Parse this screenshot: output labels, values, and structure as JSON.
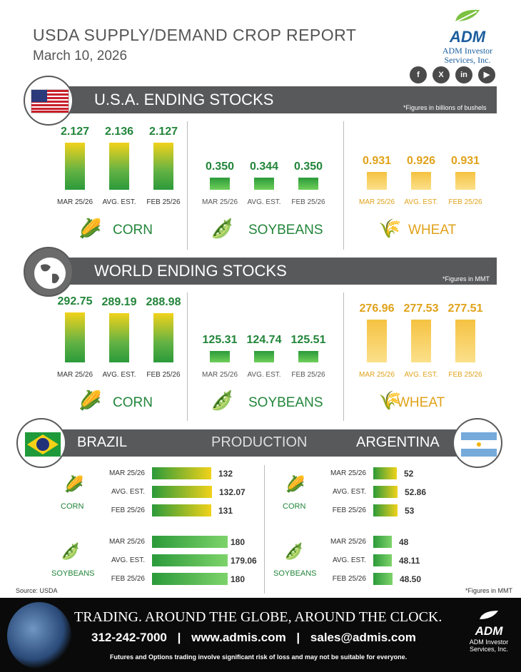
{
  "header": {
    "title": "USDA SUPPLY/DEMAND CROP REPORT",
    "date": "March 10, 2026",
    "logo": "ADM",
    "logo_sub1": "ADM Investor",
    "logo_sub2": "Services, Inc."
  },
  "social": [
    "f",
    "X",
    "in",
    "▶"
  ],
  "usa": {
    "title": "U.S.A. ENDING STOCKS",
    "note": "*Figures in billions of bushels",
    "corn": {
      "name": "CORN",
      "values": [
        "2.127",
        "2.136",
        "2.127"
      ],
      "nums": [
        2.127,
        2.136,
        2.127
      ]
    },
    "soy": {
      "name": "SOYBEANS",
      "values": [
        "0.350",
        "0.344",
        "0.350"
      ],
      "nums": [
        0.35,
        0.344,
        0.35
      ]
    },
    "wheat": {
      "name": "WHEAT",
      "values": [
        "0.931",
        "0.926",
        "0.931"
      ],
      "nums": [
        0.931,
        0.926,
        0.931
      ]
    }
  },
  "world": {
    "title": "WORLD ENDING STOCKS",
    "note": "*Figures in MMT",
    "corn": {
      "name": "CORN",
      "values": [
        "292.75",
        "289.19",
        "288.98"
      ],
      "nums": [
        292.75,
        289.19,
        288.98
      ]
    },
    "soy": {
      "name": "SOYBEANS",
      "values": [
        "125.31",
        "124.74",
        "125.51"
      ],
      "nums": [
        125.31,
        124.74,
        125.51
      ]
    },
    "wheat": {
      "name": "WHEAT",
      "values": [
        "276.96",
        "277.53",
        "277.51"
      ],
      "nums": [
        276.96,
        277.53,
        277.51
      ]
    }
  },
  "labels": [
    "MAR 25/26",
    "AVG. EST.",
    "FEB 25/26"
  ],
  "production": {
    "brazil": "BRAZIL",
    "title": "PRODUCTION",
    "argentina": "ARGENTINA",
    "brazil_corn": {
      "name": "CORN",
      "values": [
        "132",
        "132.07",
        "131"
      ]
    },
    "brazil_soy": {
      "name": "SOYBEANS",
      "values": [
        "180",
        "179.06",
        "180"
      ]
    },
    "arg_corn": {
      "name": "CORN",
      "values": [
        "52",
        "52.86",
        "53"
      ]
    },
    "arg_soy": {
      "name": "SOYBEANS",
      "values": [
        "48",
        "48.11",
        "48.50"
      ]
    }
  },
  "source": "Source: USDA",
  "mmt_note": "*Figures in MMT",
  "footer": {
    "tagline": "TRADING. AROUND THE GLOBE, AROUND THE CLOCK.",
    "phone": "312-242-7000",
    "sep": "|",
    "web": "www.admis.com",
    "email": "sales@admis.com",
    "disclaimer": "Futures and Options trading involve significant risk of loss and may not be suitable for everyone.",
    "logo": "ADM",
    "logo_sub1": "ADM Investor",
    "logo_sub2": "Services, Inc."
  }
}
